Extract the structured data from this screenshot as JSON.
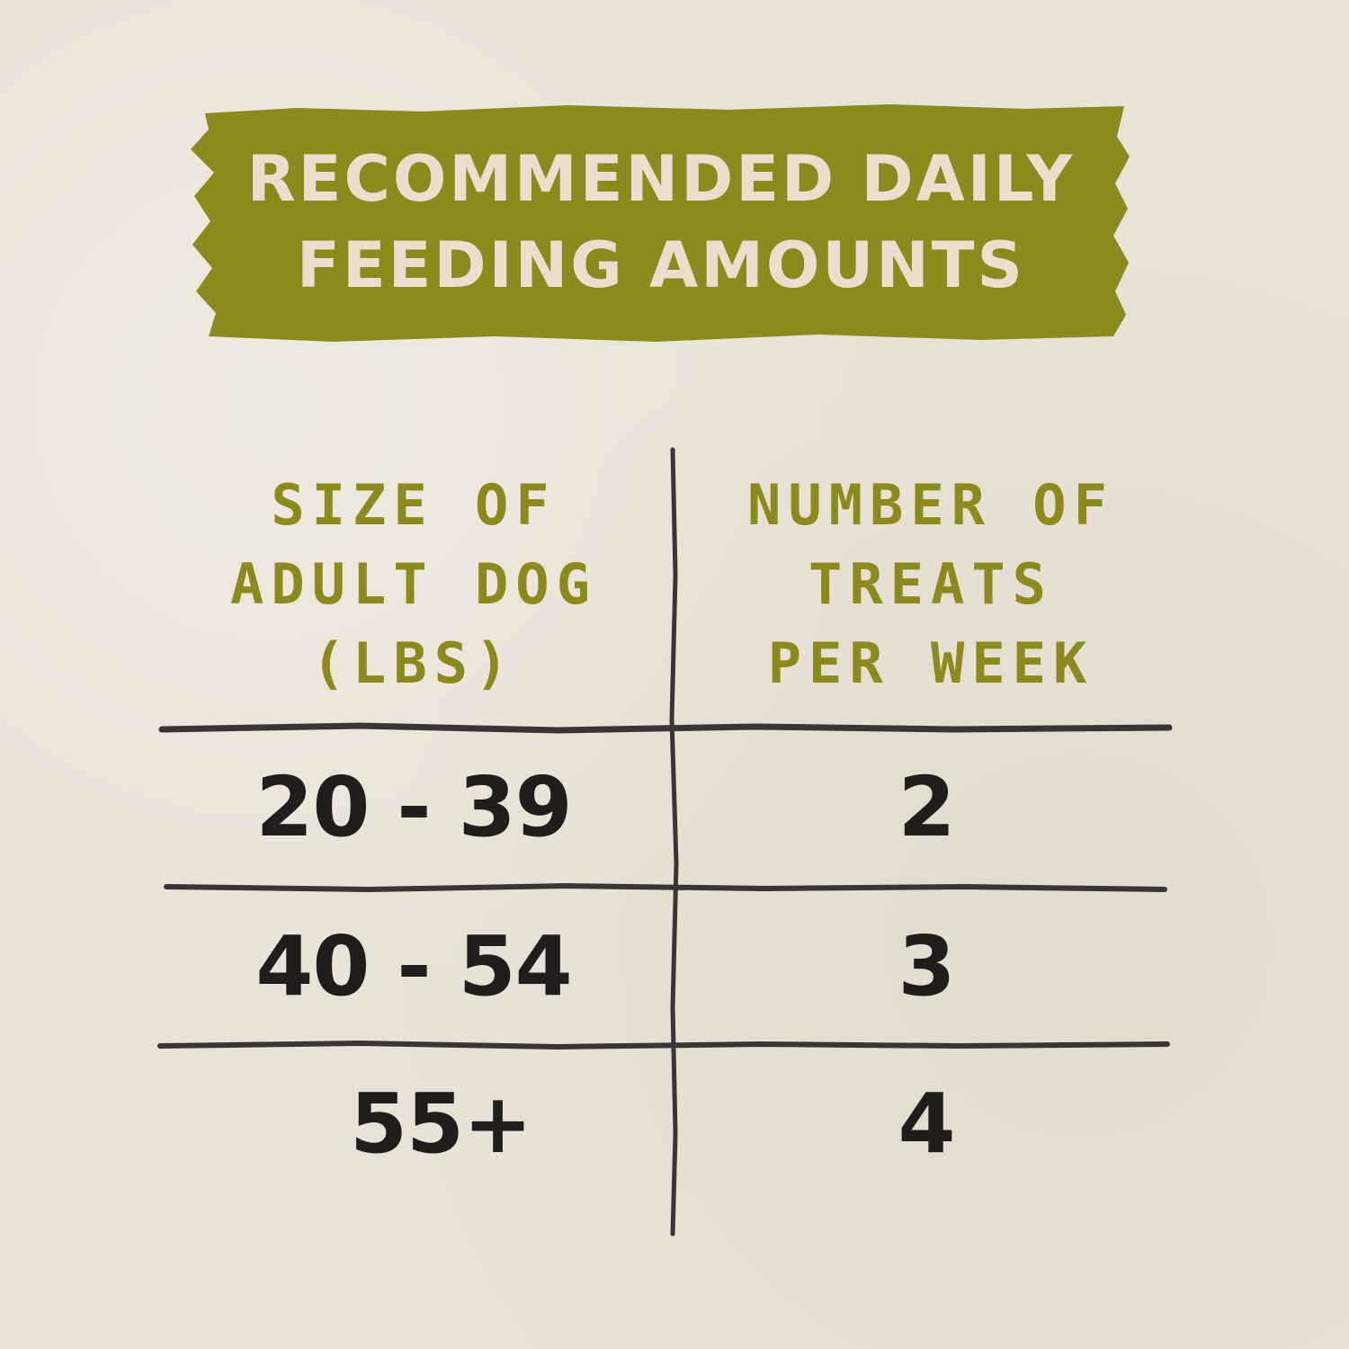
{
  "title": {
    "line1": "RECOMMENDED DAILY",
    "line2": "FEEDING AMOUNTS"
  },
  "table": {
    "headers": [
      {
        "lines": [
          "SIZE OF",
          "ADULT DOG",
          "(LBS)"
        ]
      },
      {
        "lines": [
          "NUMBER OF",
          "TREATS",
          "PER WEEK"
        ]
      }
    ],
    "rows": [
      {
        "size": "20 - 39",
        "treats": "2"
      },
      {
        "size": "40 - 54",
        "treats": "3"
      },
      {
        "size": "55+",
        "treats": "4"
      }
    ]
  },
  "colors": {
    "background": "#e9e2d6",
    "banner": "#8b8a1d",
    "banner_text": "#eadfcc",
    "header_text": "#8b8a1d",
    "value_text": "#211d1b",
    "lines": "#3a3532"
  }
}
